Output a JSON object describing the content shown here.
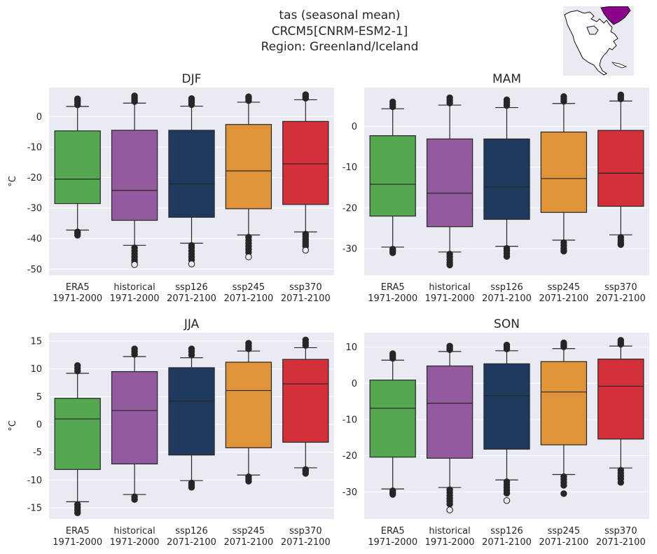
{
  "figure": {
    "title_lines": [
      "tas (seasonal mean)",
      "CRCM5[CNRM-ESM2-1]",
      "Region: Greenland/Iceland"
    ]
  },
  "colors": {
    "ERA5": "#55a750",
    "historical": "#935a9f",
    "ssp126": "#1f3a5e",
    "ssp245": "#e0943a",
    "ssp370": "#d3303a",
    "panel_bg": "#eaeaf2",
    "grid": "#ffffff",
    "inset_highlight": "#8b008b"
  },
  "inset_map": {
    "region": "Greenland/Iceland",
    "icon": "north-america-locator-map"
  },
  "chart_data": [
    {
      "type": "box",
      "title": "DJF",
      "ylabel": "°C",
      "ylim": [
        -52,
        9.5
      ],
      "yticks": [
        0,
        -10,
        -20,
        -30,
        -40,
        -50
      ],
      "categories": [
        [
          "ERA5",
          "1971-2000"
        ],
        [
          "historical",
          "1971-2000"
        ],
        [
          "ssp126",
          "2071-2100"
        ],
        [
          "ssp245",
          "2071-2100"
        ],
        [
          "ssp370",
          "2071-2100"
        ]
      ],
      "boxes": [
        {
          "q1": -28.5,
          "median": -20.5,
          "q3": -4.7,
          "whisker_low": -37.2,
          "whisker_high": 3.3,
          "outliers_low": [
            -37.8,
            -38.4,
            -38.9
          ],
          "outliers_high": [
            3.8,
            4.5,
            5.2,
            5.8
          ]
        },
        {
          "q1": -34.0,
          "median": -24.2,
          "q3": -4.5,
          "whisker_low": -42.2,
          "whisker_high": 4.4,
          "outliers_low": [
            -43,
            -44,
            -45,
            -46,
            -47,
            -47.8,
            -48.5
          ],
          "outliers_high": [
            4.9,
            5.5,
            6.1,
            6.8
          ]
        },
        {
          "q1": -33.0,
          "median": -22.1,
          "q3": -4.5,
          "whisker_low": -41.5,
          "whisker_high": 3.4,
          "outliers_low": [
            -42.2,
            -43,
            -44,
            -45,
            -46,
            -47,
            -48.3
          ],
          "outliers_high": [
            3.9,
            4.6,
            5.3,
            5.9
          ]
        },
        {
          "q1": -30.2,
          "median": -17.8,
          "q3": -2.6,
          "whisker_low": -38.8,
          "whisker_high": 4.7,
          "outliers_low": [
            -39.5,
            -40.5,
            -41.5,
            -42.5,
            -43.5,
            -44.5,
            -46.0
          ],
          "outliers_high": [
            5.2,
            5.9,
            6.5
          ]
        },
        {
          "q1": -28.8,
          "median": -15.5,
          "q3": -1.6,
          "whisker_low": -37.8,
          "whisker_high": 5.5,
          "outliers_low": [
            -38.5,
            -39.3,
            -40.2,
            -41.0,
            -41.8,
            -42.5,
            -43.8
          ],
          "outliers_high": [
            6.0,
            6.6,
            7.2
          ]
        }
      ]
    },
    {
      "type": "box",
      "title": "MAM",
      "ylabel": "",
      "ylim": [
        -36.5,
        9.5
      ],
      "yticks": [
        0,
        -10,
        -20,
        -30
      ],
      "categories": [
        [
          "ERA5",
          "1971-2000"
        ],
        [
          "historical",
          "1971-2000"
        ],
        [
          "ssp126",
          "2071-2100"
        ],
        [
          "ssp245",
          "2071-2100"
        ],
        [
          "ssp370",
          "2071-2100"
        ]
      ],
      "boxes": [
        {
          "q1": -22.0,
          "median": -14.2,
          "q3": -2.3,
          "whisker_low": -29.6,
          "whisker_high": 4.3,
          "outliers_low": [
            -30.1,
            -30.6,
            -31.0
          ],
          "outliers_high": [
            4.8,
            5.4,
            6.0
          ]
        },
        {
          "q1": -24.6,
          "median": -16.4,
          "q3": -3.1,
          "whisker_low": -30.8,
          "whisker_high": 5.2,
          "outliers_low": [
            -31.3,
            -32.0,
            -32.7,
            -33.4,
            -34.0
          ],
          "outliers_high": [
            5.7,
            6.3,
            7.0
          ]
        },
        {
          "q1": -22.8,
          "median": -14.9,
          "q3": -3.1,
          "whisker_low": -29.4,
          "whisker_high": 4.6,
          "outliers_low": [
            -29.9,
            -30.5,
            -31.2,
            -31.9
          ],
          "outliers_high": [
            5.1,
            5.8,
            6.5
          ]
        },
        {
          "q1": -21.1,
          "median": -12.8,
          "q3": -1.4,
          "whisker_low": -27.9,
          "whisker_high": 5.6,
          "outliers_low": [
            -28.5,
            -29.2,
            -30.0,
            -30.6
          ],
          "outliers_high": [
            6.1,
            6.7,
            7.3
          ]
        },
        {
          "q1": -19.6,
          "median": -11.5,
          "q3": -1.0,
          "whisker_low": -26.6,
          "whisker_high": 6.2,
          "outliers_low": [
            -27.2,
            -27.9,
            -28.5,
            -29.0
          ],
          "outliers_high": [
            6.7,
            7.2,
            7.7
          ]
        }
      ]
    },
    {
      "type": "box",
      "title": "JJA",
      "ylabel": "°C",
      "ylim": [
        -17,
        16.5
      ],
      "yticks": [
        15,
        10,
        5,
        0,
        -5,
        -10,
        -15
      ],
      "categories": [
        [
          "ERA5",
          "1971-2000"
        ],
        [
          "historical",
          "1971-2000"
        ],
        [
          "ssp126",
          "2071-2100"
        ],
        [
          "ssp245",
          "2071-2100"
        ],
        [
          "ssp370",
          "2071-2100"
        ]
      ],
      "boxes": [
        {
          "q1": -8.1,
          "median": 1.0,
          "q3": 4.7,
          "whisker_low": -13.9,
          "whisker_high": 9.2,
          "outliers_low": [
            -14.4,
            -14.9,
            -15.4,
            -15.9
          ],
          "outliers_high": [
            9.6,
            10.1,
            10.6
          ]
        },
        {
          "q1": -7.1,
          "median": 2.5,
          "q3": 9.5,
          "whisker_low": -12.6,
          "whisker_high": 12.2,
          "outliers_low": [
            -13.0,
            -13.5
          ],
          "outliers_high": [
            12.6,
            13.1,
            13.6
          ]
        },
        {
          "q1": -5.5,
          "median": 4.2,
          "q3": 10.2,
          "whisker_low": -10.1,
          "whisker_high": 12.0,
          "outliers_low": [
            -10.5,
            -10.9,
            -11.3
          ],
          "outliers_high": [
            12.5,
            13.1,
            13.6
          ]
        },
        {
          "q1": -4.2,
          "median": 6.1,
          "q3": 11.2,
          "whisker_low": -9.1,
          "whisker_high": 13.2,
          "outliers_low": [
            -9.4,
            -9.8,
            -10.2
          ],
          "outliers_high": [
            13.6,
            14.1,
            14.6
          ]
        },
        {
          "q1": -3.2,
          "median": 7.3,
          "q3": 11.7,
          "whisker_low": -7.8,
          "whisker_high": 13.8,
          "outliers_low": [
            -8.1,
            -8.4,
            -8.8
          ],
          "outliers_high": [
            14.2,
            14.7,
            15.2
          ]
        }
      ]
    },
    {
      "type": "box",
      "title": "SON",
      "ylabel": "",
      "ylim": [
        -37.5,
        14
      ],
      "yticks": [
        10,
        0,
        -10,
        -20,
        -30
      ],
      "categories": [
        [
          "ERA5",
          "1971-2000"
        ],
        [
          "historical",
          "1971-2000"
        ],
        [
          "ssp126",
          "2071-2100"
        ],
        [
          "ssp245",
          "2071-2100"
        ],
        [
          "ssp370",
          "2071-2100"
        ]
      ],
      "boxes": [
        {
          "q1": -20.4,
          "median": -6.9,
          "q3": 0.9,
          "whisker_low": -29.2,
          "whisker_high": 6.4,
          "outliers_low": [
            -29.7,
            -30.2,
            -30.7
          ],
          "outliers_high": [
            6.9,
            7.5,
            8.2
          ]
        },
        {
          "q1": -20.7,
          "median": -5.5,
          "q3": 4.8,
          "whisker_low": -28.8,
          "whisker_high": 8.8,
          "outliers_low": [
            -29.4,
            -30.2,
            -31.0,
            -31.8,
            -32.6,
            -33.4,
            -35.0
          ],
          "outliers_high": [
            9.3,
            9.8,
            10.3
          ]
        },
        {
          "q1": -18.2,
          "median": -3.4,
          "q3": 5.4,
          "whisker_low": -26.7,
          "whisker_high": 9.0,
          "outliers_low": [
            -27.2,
            -28.0,
            -28.8,
            -29.6,
            -30.4,
            -32.4
          ],
          "outliers_high": [
            9.5,
            10.0,
            10.6
          ]
        },
        {
          "q1": -17.0,
          "median": -2.4,
          "q3": 6.0,
          "whisker_low": -25.2,
          "whisker_high": 9.6,
          "outliers_low": [
            -25.8,
            -26.6,
            -27.4,
            -28.2,
            -30.5
          ],
          "outliers_high": [
            10.1,
            10.6,
            11.2
          ]
        },
        {
          "q1": -15.4,
          "median": -0.8,
          "q3": 6.7,
          "whisker_low": -23.4,
          "whisker_high": 10.3,
          "outliers_low": [
            -24.0,
            -24.8,
            -25.6,
            -26.4,
            -27.4
          ],
          "outliers_high": [
            10.8,
            11.3,
            11.9
          ]
        }
      ]
    }
  ]
}
